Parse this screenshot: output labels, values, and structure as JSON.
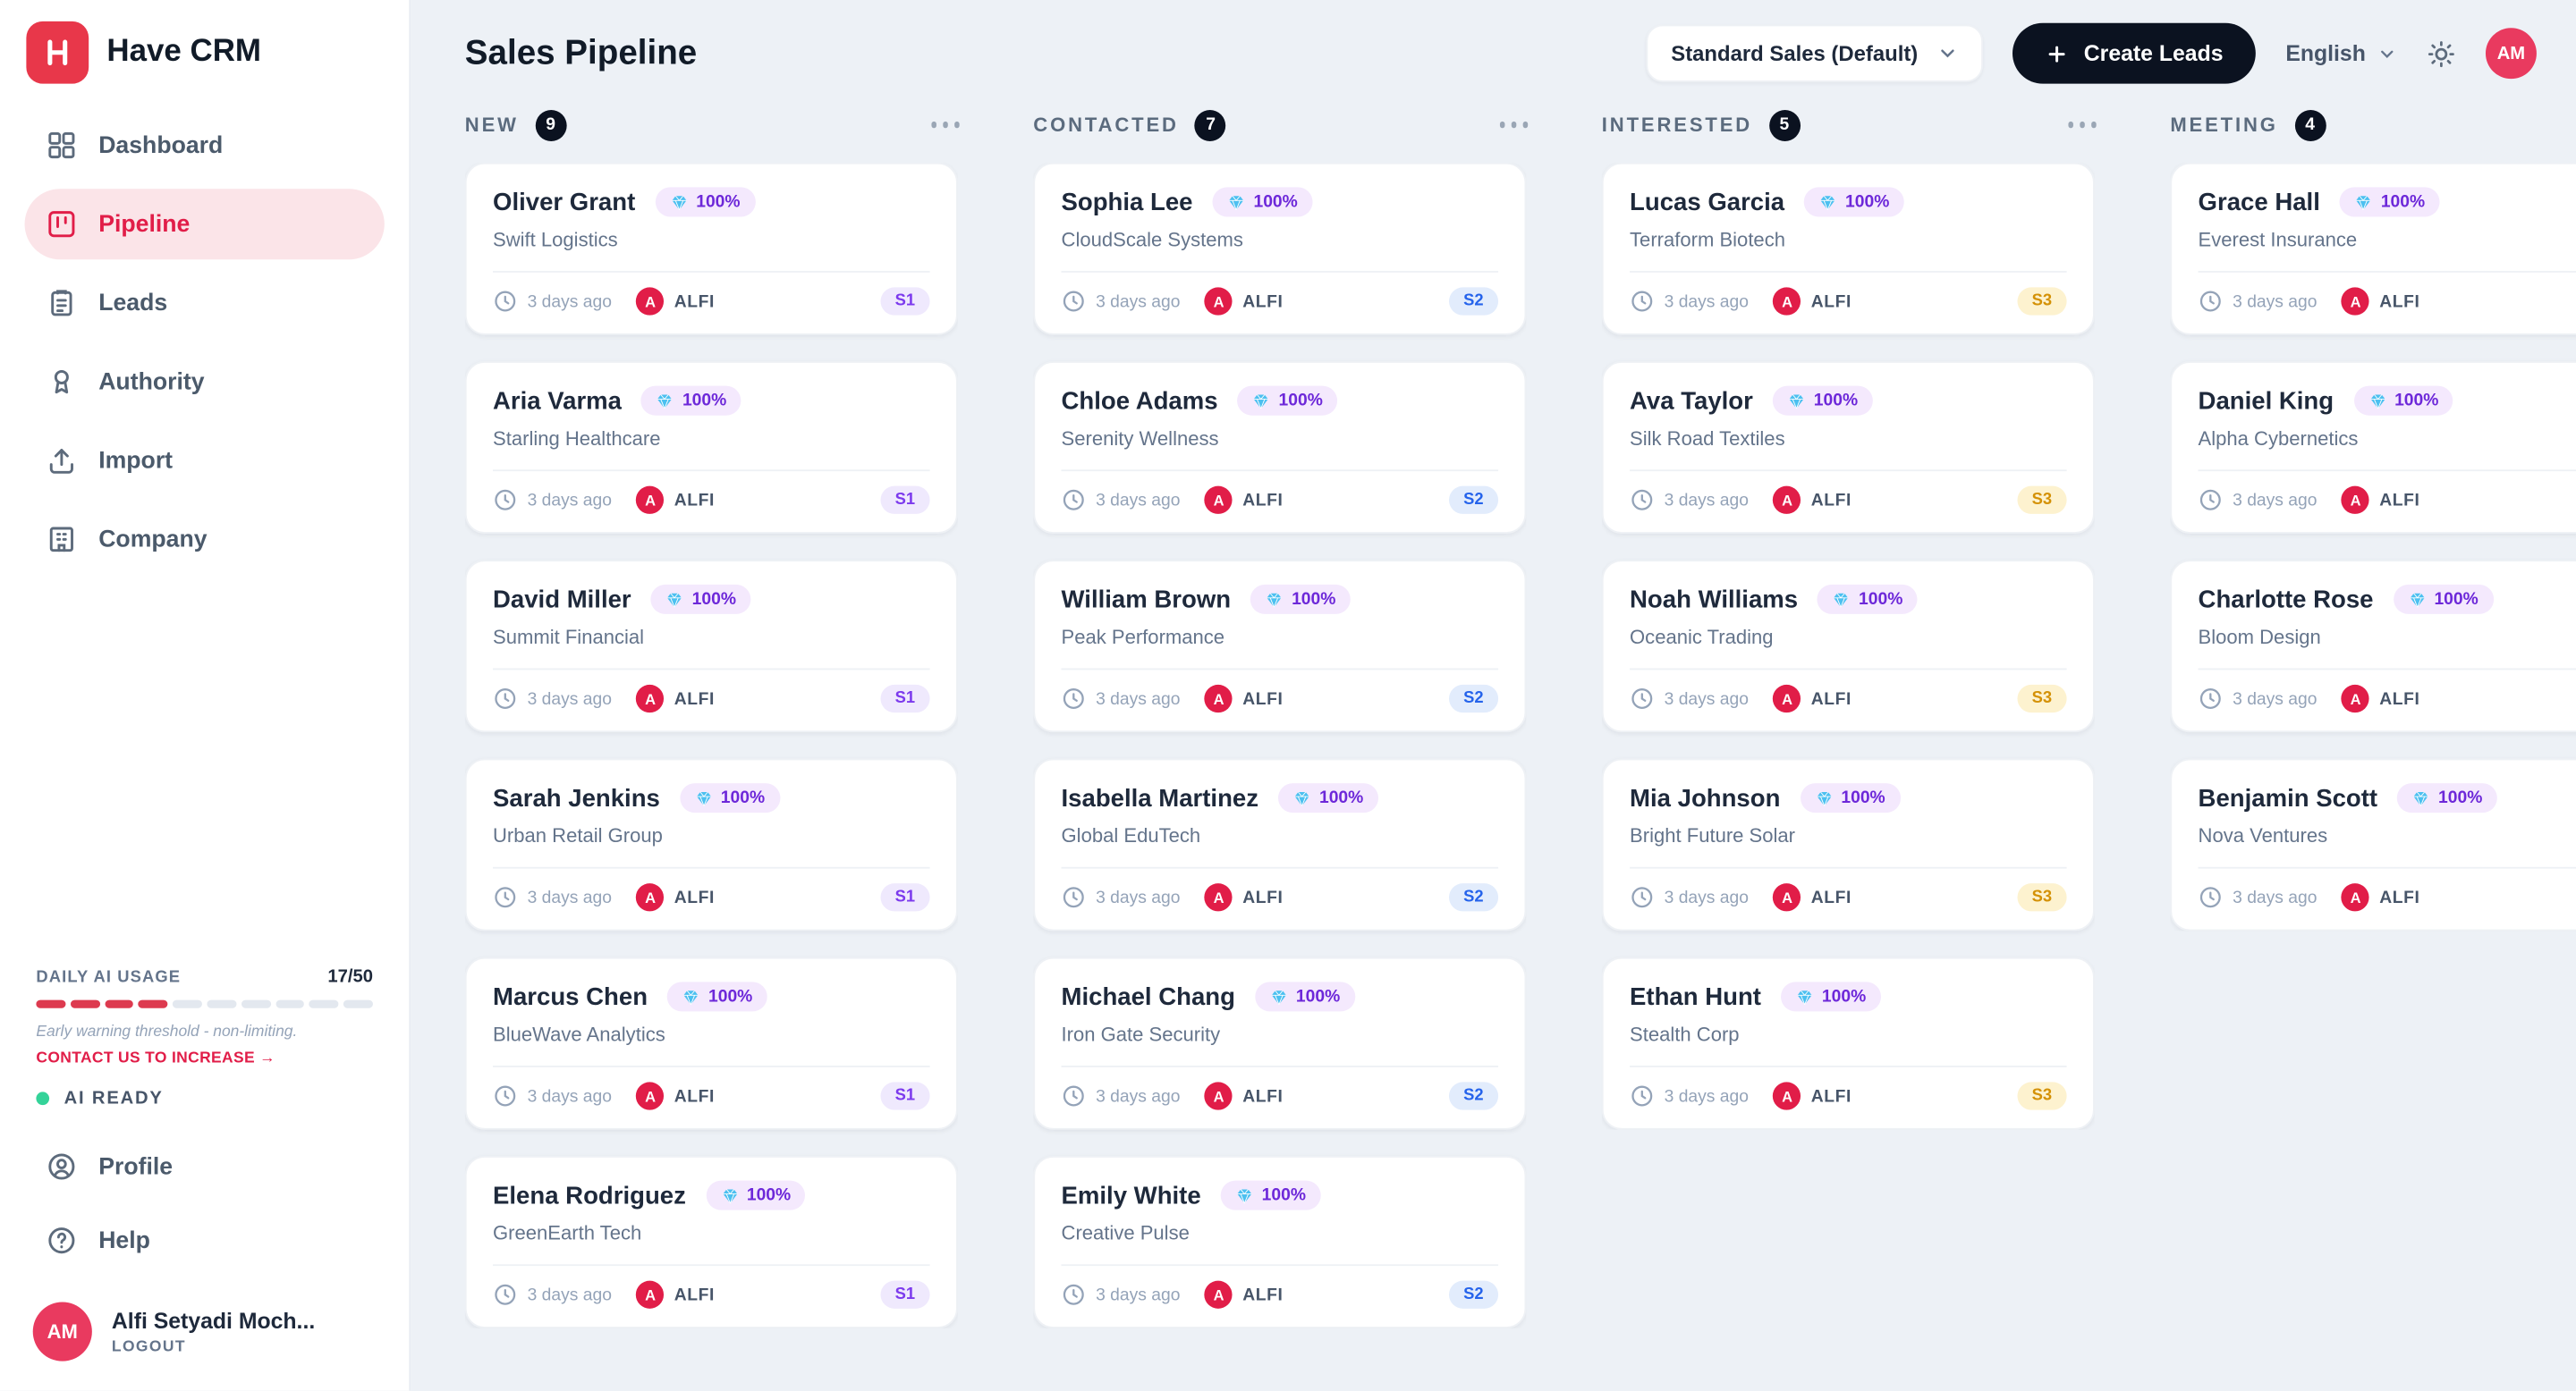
{
  "app": {
    "name": "Have CRM"
  },
  "colors": {
    "brand_red": "#e8374a",
    "accent_crimson": "#e11d48",
    "create_button_bg": "#0b1220",
    "board_bg": "#edf1f6",
    "stage_s1": "#7c3aed",
    "stage_s2": "#2563eb",
    "stage_s3": "#d49106",
    "score_badge_text": "#6d28d9",
    "ai_ready_dot": "#34d399"
  },
  "sidebar": {
    "nav": [
      {
        "label": "Dashboard",
        "icon": "dashboard-grid"
      },
      {
        "label": "Pipeline",
        "icon": "kanban",
        "active": true
      },
      {
        "label": "Leads",
        "icon": "clipboard"
      },
      {
        "label": "Authority",
        "icon": "award"
      },
      {
        "label": "Import",
        "icon": "upload"
      },
      {
        "label": "Company",
        "icon": "building"
      }
    ],
    "ai_usage": {
      "label": "DAILY AI USAGE",
      "value": "17/50",
      "segments_total": 10,
      "segments_filled": 4,
      "note": "Early warning threshold - non-limiting.",
      "cta": "CONTACT US TO INCREASE →",
      "status": "AI READY"
    },
    "foot_nav": [
      {
        "label": "Profile",
        "icon": "user-circle"
      },
      {
        "label": "Help",
        "icon": "question-circle"
      }
    ],
    "user": {
      "initials": "AM",
      "name": "Alfi Setyadi Moch...",
      "logout": "LOGOUT"
    }
  },
  "header": {
    "title": "Sales Pipeline",
    "pipeline_select": "Standard Sales (Default)",
    "create_label": "Create Leads",
    "language": "English",
    "user_initials": "AM"
  },
  "board": {
    "columns": [
      {
        "name": "NEW",
        "count": 9,
        "cards": [
          {
            "name": "Oliver Grant",
            "score": "100%",
            "company": "Swift Logistics",
            "time": "3 days ago",
            "owner_initial": "A",
            "owner": "ALFI",
            "stage": "S1"
          },
          {
            "name": "Aria Varma",
            "score": "100%",
            "company": "Starling Healthcare",
            "time": "3 days ago",
            "owner_initial": "A",
            "owner": "ALFI",
            "stage": "S1"
          },
          {
            "name": "David Miller",
            "score": "100%",
            "company": "Summit Financial",
            "time": "3 days ago",
            "owner_initial": "A",
            "owner": "ALFI",
            "stage": "S1"
          },
          {
            "name": "Sarah Jenkins",
            "score": "100%",
            "company": "Urban Retail Group",
            "time": "3 days ago",
            "owner_initial": "A",
            "owner": "ALFI",
            "stage": "S1"
          },
          {
            "name": "Marcus Chen",
            "score": "100%",
            "company": "BlueWave Analytics",
            "time": "3 days ago",
            "owner_initial": "A",
            "owner": "ALFI",
            "stage": "S1"
          },
          {
            "name": "Elena Rodriguez",
            "score": "100%",
            "company": "GreenEarth Tech",
            "time": "3 days ago",
            "owner_initial": "A",
            "owner": "ALFI",
            "stage": "S1"
          }
        ]
      },
      {
        "name": "CONTACTED",
        "count": 7,
        "cards": [
          {
            "name": "Sophia Lee",
            "score": "100%",
            "company": "CloudScale Systems",
            "time": "3 days ago",
            "owner_initial": "A",
            "owner": "ALFI",
            "stage": "S2"
          },
          {
            "name": "Chloe Adams",
            "score": "100%",
            "company": "Serenity Wellness",
            "time": "3 days ago",
            "owner_initial": "A",
            "owner": "ALFI",
            "stage": "S2"
          },
          {
            "name": "William Brown",
            "score": "100%",
            "company": "Peak Performance",
            "time": "3 days ago",
            "owner_initial": "A",
            "owner": "ALFI",
            "stage": "S2"
          },
          {
            "name": "Isabella Martinez",
            "score": "100%",
            "company": "Global EduTech",
            "time": "3 days ago",
            "owner_initial": "A",
            "owner": "ALFI",
            "stage": "S2"
          },
          {
            "name": "Michael Chang",
            "score": "100%",
            "company": "Iron Gate Security",
            "time": "3 days ago",
            "owner_initial": "A",
            "owner": "ALFI",
            "stage": "S2"
          },
          {
            "name": "Emily White",
            "score": "100%",
            "company": "Creative Pulse",
            "time": "3 days ago",
            "owner_initial": "A",
            "owner": "ALFI",
            "stage": "S2"
          }
        ]
      },
      {
        "name": "INTERESTED",
        "count": 5,
        "cards": [
          {
            "name": "Lucas Garcia",
            "score": "100%",
            "company": "Terraform Biotech",
            "time": "3 days ago",
            "owner_initial": "A",
            "owner": "ALFI",
            "stage": "S3"
          },
          {
            "name": "Ava Taylor",
            "score": "100%",
            "company": "Silk Road Textiles",
            "time": "3 days ago",
            "owner_initial": "A",
            "owner": "ALFI",
            "stage": "S3"
          },
          {
            "name": "Noah Williams",
            "score": "100%",
            "company": "Oceanic Trading",
            "time": "3 days ago",
            "owner_initial": "A",
            "owner": "ALFI",
            "stage": "S3"
          },
          {
            "name": "Mia Johnson",
            "score": "100%",
            "company": "Bright Future Solar",
            "time": "3 days ago",
            "owner_initial": "A",
            "owner": "ALFI",
            "stage": "S3"
          },
          {
            "name": "Ethan Hunt",
            "score": "100%",
            "company": "Stealth Corp",
            "time": "3 days ago",
            "owner_initial": "A",
            "owner": "ALFI",
            "stage": "S3"
          }
        ]
      },
      {
        "name": "MEETING",
        "count": 4,
        "cards": [
          {
            "name": "Grace Hall",
            "score": "100%",
            "company": "Everest Insurance",
            "time": "3 days ago",
            "owner_initial": "A",
            "owner": "ALFI",
            "stage": null
          },
          {
            "name": "Daniel King",
            "score": "100%",
            "company": "Alpha Cybernetics",
            "time": "3 days ago",
            "owner_initial": "A",
            "owner": "ALFI",
            "stage": null
          },
          {
            "name": "Charlotte Rose",
            "score": "100%",
            "company": "Bloom Design",
            "time": "3 days ago",
            "owner_initial": "A",
            "owner": "ALFI",
            "stage": null
          },
          {
            "name": "Benjamin Scott",
            "score": "100%",
            "company": "Nova Ventures",
            "time": "3 days ago",
            "owner_initial": "A",
            "owner": "ALFI",
            "stage": null
          }
        ]
      }
    ]
  }
}
